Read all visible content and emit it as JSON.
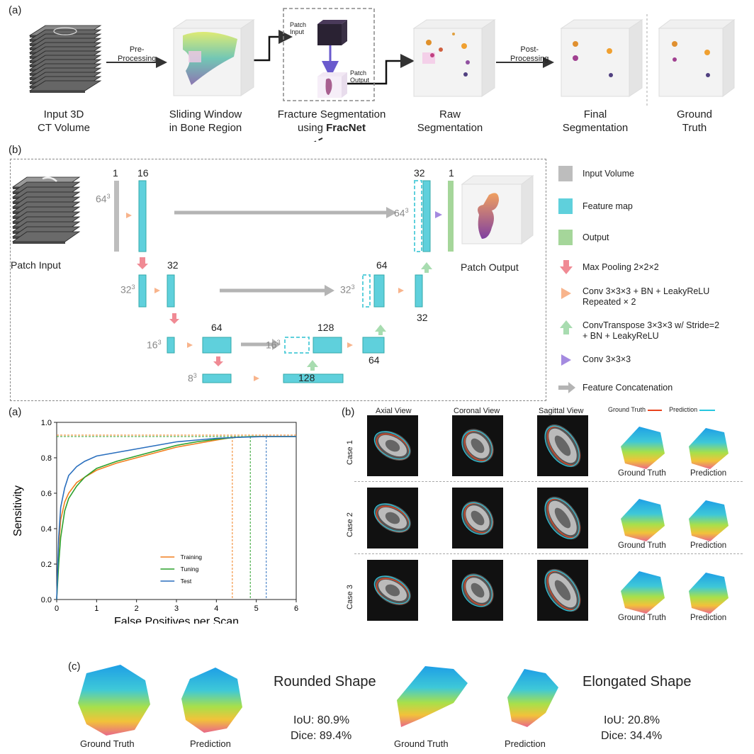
{
  "top": {
    "panel_label": "(a)",
    "stages": [
      {
        "caption": "Input 3D\nCT Volume"
      },
      {
        "caption": "Sliding Window\nin Bone Region"
      },
      {
        "caption": "Fracture Segmentation\nusing ",
        "bold": "FracNet"
      },
      {
        "caption": "Raw\nSegmentation"
      },
      {
        "caption": "Final\nSegmentation"
      },
      {
        "caption": "Ground\nTruth"
      }
    ],
    "arrow_labels": {
      "pre": "Pre-\nProcessing",
      "post": "Post-\nProcessing",
      "patch_input": "Patch\nInput",
      "patch_output": "Patch\nOutput"
    }
  },
  "network": {
    "panel_label": "(b)",
    "patch_input": "Patch Input",
    "patch_output": "Patch Output",
    "channels": {
      "c1": "1",
      "c16": "16",
      "c32a": "32",
      "c64a": "64",
      "c128a": "128",
      "c64b": "64",
      "c32b": "32",
      "c64c": "64",
      "c128b": "128",
      "c32c": "32",
      "c32d": "32",
      "c1b": "1"
    },
    "sizes": {
      "s64": "64",
      "s32": "32",
      "s16": "16",
      "s8": "8",
      "s16b": "16",
      "s32b": "32",
      "s64b": "64",
      "exp": "3"
    },
    "legend": [
      {
        "icon": "gray-block",
        "text": "Input Volume",
        "color": "#bdbdbd"
      },
      {
        "icon": "cyan-block",
        "text": "Feature map",
        "color": "#5fd0dc"
      },
      {
        "icon": "green-block",
        "text": "Output",
        "color": "#a5d69a"
      },
      {
        "icon": "down-arrow",
        "text": "Max Pooling 2×2×2",
        "color": "#f08a94"
      },
      {
        "icon": "right-triangle",
        "text": "Conv 3×3×3 + BN + LeakyReLU\nRepeated × 2",
        "color": "#f8b48c"
      },
      {
        "icon": "up-arrow",
        "text": "ConvTranspose 3×3×3 w/ Stride=2\n+ BN + LeakyReLU",
        "color": "#a8dcb0"
      },
      {
        "icon": "purple-triangle",
        "text": "Conv 3×3×3",
        "color": "#a48ae0"
      },
      {
        "icon": "gray-arrow",
        "text": "Feature Concatenation",
        "color": "#b4b4b4"
      }
    ]
  },
  "froc": {
    "panel_label": "(a)"
  },
  "chart_data": {
    "type": "line",
    "title": "",
    "xlabel": "False Positives per Scan",
    "ylabel": "Sensitivity",
    "xlim": [
      0,
      6
    ],
    "ylim": [
      0,
      1.0
    ],
    "xticks": [
      "0",
      "1",
      "2",
      "3",
      "4",
      "5",
      "6"
    ],
    "yticks": [
      "0.0",
      "0.2",
      "0.4",
      "0.6",
      "0.8",
      "1.0"
    ],
    "legend_position": "lower-center",
    "series": [
      {
        "name": "Training",
        "color": "#f07f1e",
        "x": [
          0,
          0.05,
          0.1,
          0.2,
          0.3,
          0.5,
          0.7,
          1.0,
          1.5,
          2.0,
          2.5,
          3.0,
          3.5,
          4.0,
          4.4,
          5.0,
          6.0
        ],
        "y": [
          0,
          0.3,
          0.45,
          0.55,
          0.6,
          0.66,
          0.69,
          0.73,
          0.77,
          0.8,
          0.83,
          0.86,
          0.88,
          0.9,
          0.915,
          0.92,
          0.92
        ],
        "vline": 4.4
      },
      {
        "name": "Tuning",
        "color": "#2ca02c",
        "x": [
          0,
          0.05,
          0.1,
          0.2,
          0.3,
          0.5,
          0.7,
          1.0,
          1.5,
          2.0,
          2.5,
          3.0,
          3.5,
          4.0,
          4.5,
          4.85,
          6.0
        ],
        "y": [
          0,
          0.2,
          0.35,
          0.5,
          0.57,
          0.64,
          0.69,
          0.74,
          0.78,
          0.81,
          0.84,
          0.87,
          0.89,
          0.905,
          0.915,
          0.92,
          0.92
        ],
        "vline": 4.85
      },
      {
        "name": "Test",
        "color": "#2a6fbe",
        "x": [
          0,
          0.05,
          0.1,
          0.2,
          0.3,
          0.5,
          0.7,
          1.0,
          1.5,
          2.0,
          2.5,
          3.0,
          3.5,
          4.0,
          4.5,
          5.25,
          6.0
        ],
        "y": [
          0,
          0.35,
          0.52,
          0.63,
          0.7,
          0.75,
          0.78,
          0.81,
          0.83,
          0.85,
          0.87,
          0.89,
          0.9,
          0.91,
          0.915,
          0.92,
          0.92
        ],
        "vline": 5.25
      }
    ],
    "hline": 0.92
  },
  "cases": {
    "panel_label": "(b)",
    "views": [
      "Axial View",
      "Coronal View",
      "Sagittal View"
    ],
    "legend_gt": "Ground Truth",
    "legend_pred": "Prediction",
    "gt_color": "#e8431d",
    "pred_color": "#27c7e0",
    "rows": [
      {
        "name": "Case 1",
        "gt": "Ground Truth",
        "pred": "Prediction"
      },
      {
        "name": "Case 2",
        "gt": "Ground Truth",
        "pred": "Prediction"
      },
      {
        "name": "Case 3",
        "gt": "Ground Truth",
        "pred": "Prediction"
      }
    ]
  },
  "shapes": {
    "panel_label": "(c)",
    "rounded": {
      "title": "Rounded Shape",
      "iou": "IoU: 80.9%",
      "dice": "Dice: 89.4%",
      "gt": "Ground Truth",
      "pred": "Prediction"
    },
    "elongated": {
      "title": "Elongated Shape",
      "iou": "IoU: 20.8%",
      "dice": "Dice: 34.4%",
      "gt": "Ground Truth",
      "pred": "Prediction"
    }
  }
}
